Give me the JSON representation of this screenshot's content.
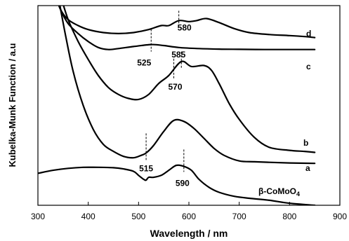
{
  "chart_data": {
    "type": "line",
    "xlabel": "Wavelength / nm",
    "ylabel": "Kubelka-Munk Function / a.u",
    "xlim": [
      300,
      900
    ],
    "ylim": [
      0,
      1
    ],
    "xticks": [
      300,
      400,
      500,
      600,
      700,
      800,
      900
    ],
    "grid": false,
    "series": [
      {
        "name": "d",
        "x": [
          335,
          345,
          360,
          380,
          400,
          430,
          460,
          490,
          520,
          545,
          560,
          580,
          600,
          615,
          635,
          660,
          690,
          720,
          760,
          800,
          830,
          850
        ],
        "y": [
          1.05,
          0.98,
          0.93,
          0.9,
          0.88,
          0.865,
          0.86,
          0.865,
          0.88,
          0.9,
          0.9,
          0.925,
          0.92,
          0.925,
          0.935,
          0.915,
          0.885,
          0.865,
          0.855,
          0.85,
          0.845,
          0.84
        ]
      },
      {
        "name": "c",
        "x": [
          335,
          345,
          360,
          380,
          400,
          420,
          440,
          460,
          490,
          525,
          550,
          580,
          620,
          660,
          700,
          750,
          800,
          850
        ],
        "y": [
          1.05,
          0.98,
          0.91,
          0.86,
          0.82,
          0.79,
          0.78,
          0.785,
          0.795,
          0.805,
          0.8,
          0.79,
          0.785,
          0.782,
          0.781,
          0.78,
          0.78,
          0.78
        ]
      },
      {
        "name": "b",
        "x": [
          345,
          360,
          380,
          400,
          420,
          440,
          460,
          480,
          500,
          520,
          540,
          560,
          585,
          605,
          630,
          645,
          660,
          680,
          700,
          730,
          760,
          800,
          830,
          850
        ],
        "y": [
          1.05,
          0.93,
          0.82,
          0.73,
          0.65,
          0.59,
          0.555,
          0.535,
          0.53,
          0.555,
          0.61,
          0.65,
          0.72,
          0.695,
          0.7,
          0.675,
          0.61,
          0.51,
          0.43,
          0.34,
          0.29,
          0.275,
          0.27,
          0.265
        ]
      },
      {
        "name": "a",
        "x": [
          340,
          355,
          370,
          390,
          410,
          430,
          450,
          470,
          490,
          505,
          515,
          530,
          550,
          570,
          590,
          610,
          630,
          650,
          670,
          700,
          730,
          760,
          800,
          850
        ],
        "y": [
          1.05,
          0.85,
          0.67,
          0.5,
          0.38,
          0.305,
          0.27,
          0.245,
          0.238,
          0.25,
          0.262,
          0.3,
          0.37,
          0.425,
          0.42,
          0.385,
          0.335,
          0.285,
          0.25,
          0.222,
          0.218,
          0.215,
          0.212,
          0.21
        ]
      },
      {
        "name": "β-CoMoO4",
        "x": [
          300,
          330,
          360,
          390,
          420,
          450,
          470,
          490,
          500,
          510,
          515,
          520,
          530,
          545,
          560,
          575,
          590,
          605,
          620,
          640,
          660,
          690,
          720,
          760,
          800,
          850
        ],
        "y": [
          0.16,
          0.175,
          0.185,
          0.19,
          0.19,
          0.188,
          0.182,
          0.17,
          0.15,
          0.13,
          0.126,
          0.14,
          0.14,
          0.15,
          0.175,
          0.2,
          0.195,
          0.175,
          0.13,
          0.09,
          0.065,
          0.045,
          0.035,
          0.025,
          0.01,
          0.0
        ]
      }
    ],
    "annotations": [
      {
        "x": 580,
        "text": "580",
        "series": "d"
      },
      {
        "x": 525,
        "text": "525",
        "series": "c"
      },
      {
        "x": 585,
        "text": "585",
        "series": "b"
      },
      {
        "x": 570,
        "text": "570",
        "series": "b"
      },
      {
        "x": 515,
        "text": "515",
        "series": "a"
      },
      {
        "x": 590,
        "text": "590",
        "series": "β-CoMoO4"
      }
    ]
  }
}
